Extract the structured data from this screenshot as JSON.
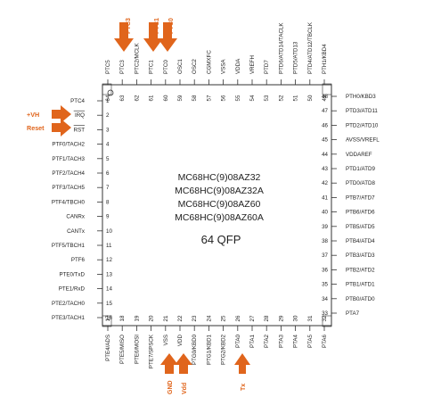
{
  "chip": {
    "titles": [
      "MC68HC(9)08AZ32",
      "MC68HC(9)08AZ32A",
      "MC68HC(9)08AZ60",
      "MC68HC(9)08AZ60A"
    ],
    "package": "64 QFP"
  },
  "pins": {
    "left": [
      {
        "num": "1",
        "label": "PTC4"
      },
      {
        "num": "2",
        "label": "IRQ"
      },
      {
        "num": "3",
        "label": "RST"
      },
      {
        "num": "4",
        "label": "PTF0/TACH2"
      },
      {
        "num": "5",
        "label": "PTF1/TACH3"
      },
      {
        "num": "6",
        "label": "PTF2/TACH4"
      },
      {
        "num": "7",
        "label": "PTF3/TACH5"
      },
      {
        "num": "8",
        "label": "PTF4/TBCH0"
      },
      {
        "num": "9",
        "label": "CANRx"
      },
      {
        "num": "10",
        "label": "CANTx"
      },
      {
        "num": "11",
        "label": "PTF5/TBCH1"
      },
      {
        "num": "12",
        "label": "PTF6"
      },
      {
        "num": "13",
        "label": "PTE0/TxD"
      },
      {
        "num": "14",
        "label": "PTE1/RxD"
      },
      {
        "num": "15",
        "label": "PTE2/TACH0"
      },
      {
        "num": "16",
        "label": "PTE3/TACH1"
      }
    ],
    "right": [
      {
        "num": "48",
        "label": "PTH0/KBD3"
      },
      {
        "num": "47",
        "label": "PTD3/ATD11"
      },
      {
        "num": "46",
        "label": "PTD2/ATD10"
      },
      {
        "num": "45",
        "label": "AVSS/VREFL"
      },
      {
        "num": "44",
        "label": "VDDAREF"
      },
      {
        "num": "43",
        "label": "PTD1/ATD9"
      },
      {
        "num": "42",
        "label": "PTD0/ATD8"
      },
      {
        "num": "41",
        "label": "PTB7/ATD7"
      },
      {
        "num": "40",
        "label": "PTB6/ATD6"
      },
      {
        "num": "39",
        "label": "PTB5/ATD5"
      },
      {
        "num": "38",
        "label": "PTB4/ATD4"
      },
      {
        "num": "37",
        "label": "PTB3/ATD3"
      },
      {
        "num": "36",
        "label": "PTB2/ATD2"
      },
      {
        "num": "35",
        "label": "PTB1/ATD1"
      },
      {
        "num": "34",
        "label": "PTB0/ATD0"
      },
      {
        "num": "33",
        "label": "PTA7"
      }
    ],
    "top": [
      {
        "num": "64",
        "label": "PTC5"
      },
      {
        "num": "63",
        "label": "PTC3"
      },
      {
        "num": "62",
        "label": "PTC2/MCLK"
      },
      {
        "num": "61",
        "label": "PTC1"
      },
      {
        "num": "60",
        "label": "PTC0"
      },
      {
        "num": "59",
        "label": "OSC1"
      },
      {
        "num": "58",
        "label": "OSC2"
      },
      {
        "num": "57",
        "label": "CGMXFC"
      },
      {
        "num": "56",
        "label": "VSSA"
      },
      {
        "num": "55",
        "label": "VDDA"
      },
      {
        "num": "54",
        "label": "VREFH"
      },
      {
        "num": "53",
        "label": "PTD7"
      },
      {
        "num": "52",
        "label": "PTD6/ATD14/TACLK"
      },
      {
        "num": "51",
        "label": "PTD5/ATD13"
      },
      {
        "num": "50",
        "label": "PTD4/ATD12/TBCLK"
      },
      {
        "num": "49",
        "label": "PTH1/KBD4"
      }
    ],
    "bottom": [
      {
        "num": "17",
        "label": "PTE4/ADS"
      },
      {
        "num": "18",
        "label": "PTE5/MISO"
      },
      {
        "num": "19",
        "label": "PTE6/MOSI"
      },
      {
        "num": "20",
        "label": "PTE7/SPSCK"
      },
      {
        "num": "21",
        "label": "VSS"
      },
      {
        "num": "22",
        "label": "VDD"
      },
      {
        "num": "23",
        "label": "PTG0/KBD0"
      },
      {
        "num": "24",
        "label": "PTG1/KBD1"
      },
      {
        "num": "25",
        "label": "PTG2/KBD2"
      },
      {
        "num": "26",
        "label": "PTA0"
      },
      {
        "num": "27",
        "label": "PTA1"
      },
      {
        "num": "28",
        "label": "PTA2"
      },
      {
        "num": "29",
        "label": "PTA3"
      },
      {
        "num": "30",
        "label": "PTA4"
      },
      {
        "num": "31",
        "label": "PTA5"
      },
      {
        "num": "32",
        "label": "PTA6"
      }
    ]
  },
  "annotations": {
    "vh": "+VH",
    "reset": "Reset",
    "ptc3": "PTC3",
    "ptc1": "PTC1",
    "ptc0": "PTC0",
    "gnd": "GND",
    "vdd": "Vdd",
    "tx": "Tx"
  },
  "colors": {
    "accent": "#e0651c",
    "line": "#333333",
    "text": "#222222"
  }
}
